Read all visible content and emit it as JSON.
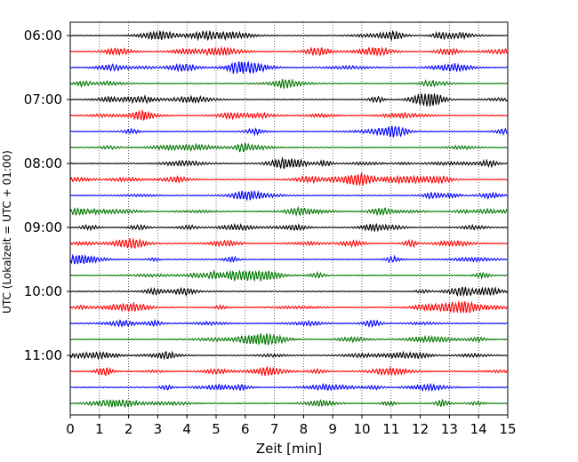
{
  "chart_data": {
    "type": "line",
    "title": "",
    "xlabel": "Zeit  [min]",
    "ylabel": "UTC (Lokalzeit = UTC + 01:00)",
    "xlim": [
      0,
      15
    ],
    "x_ticks": [
      0,
      1,
      2,
      3,
      4,
      5,
      6,
      7,
      8,
      9,
      10,
      11,
      12,
      13,
      14,
      15
    ],
    "x_tick_labels": [
      "0",
      "1",
      "2",
      "3",
      "4",
      "5",
      "6",
      "7",
      "8",
      "9",
      "10",
      "11",
      "12",
      "13",
      "14",
      "15"
    ],
    "y_tick_labels": [
      "06:00",
      "07:00",
      "08:00",
      "09:00",
      "10:00",
      "11:00"
    ],
    "grid": "vertical dotted at each minute",
    "trace_color_cycle": [
      "#000000",
      "#ff0000",
      "#0000ff",
      "#007700"
    ],
    "trace_start_times": [
      "06:00",
      "06:15",
      "06:30",
      "06:45",
      "07:00",
      "07:15",
      "07:30",
      "07:45",
      "08:00",
      "08:15",
      "08:30",
      "08:45",
      "09:00",
      "09:15",
      "09:30",
      "09:45",
      "10:00",
      "10:15",
      "10:30",
      "10:45",
      "11:00",
      "11:15",
      "11:30",
      "11:45"
    ],
    "trace_duration_min": 15
  }
}
